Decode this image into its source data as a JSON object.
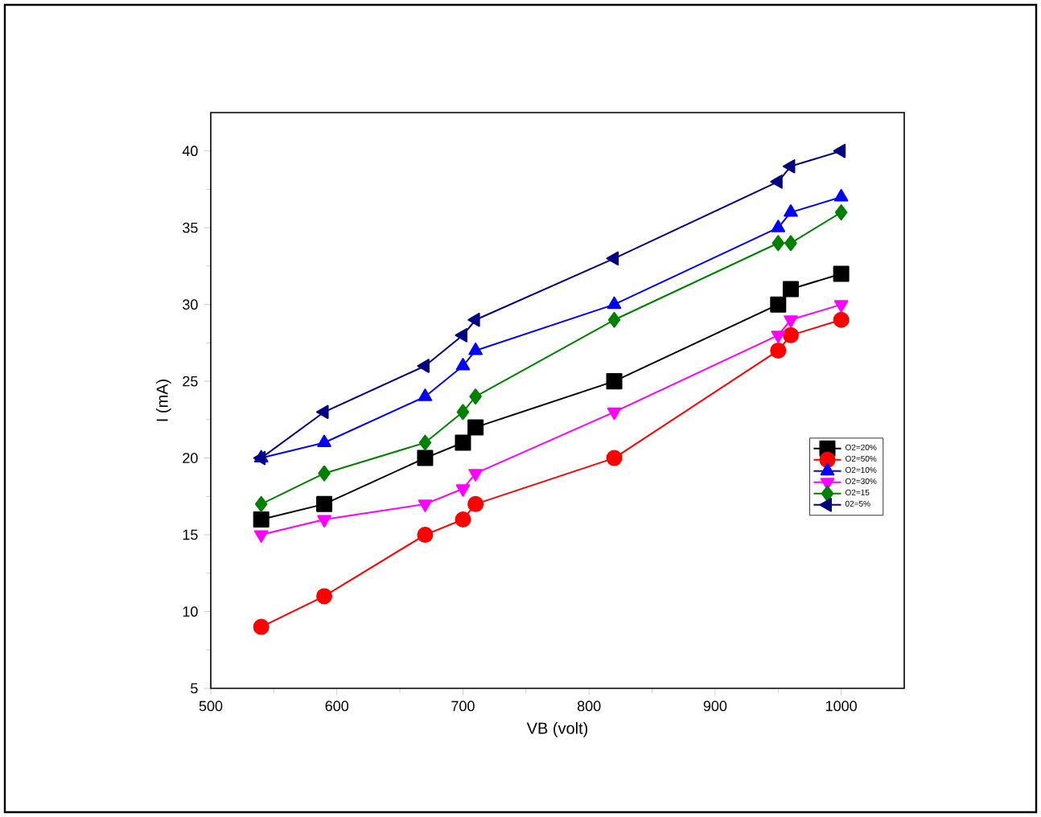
{
  "chart_data": {
    "type": "line",
    "xlabel": "VB (volt)",
    "ylabel": "I (mA)",
    "x": [
      540,
      590,
      670,
      700,
      710,
      820,
      950,
      960,
      1000
    ],
    "series": [
      {
        "name": "O2=20%",
        "color": "#000000",
        "marker": "square",
        "values": [
          16,
          17,
          20,
          21,
          22,
          25,
          30,
          31,
          32
        ]
      },
      {
        "name": "O2=50%",
        "color": "#ff0000",
        "marker": "circle",
        "values": [
          9,
          11,
          15,
          16,
          17,
          20,
          27,
          28,
          29
        ]
      },
      {
        "name": "O2=10%",
        "color": "#0000ff",
        "marker": "triangle",
        "values": [
          20,
          21,
          24,
          26,
          27,
          30,
          35,
          36,
          37
        ]
      },
      {
        "name": "O2=30%",
        "color": "#ff00ff",
        "marker": "triangle-down",
        "values": [
          15,
          16,
          17,
          18,
          19,
          23,
          28,
          29,
          30
        ]
      },
      {
        "name": "O2=15",
        "color": "#008000",
        "marker": "diamond",
        "values": [
          17,
          19,
          21,
          23,
          24,
          29,
          34,
          34,
          36
        ]
      },
      {
        "name": "02=5%",
        "color": "#000080",
        "marker": "triangle-left",
        "values": [
          20,
          23,
          26,
          28,
          29,
          33,
          38,
          39,
          40
        ]
      }
    ],
    "xlim": [
      500,
      1050
    ],
    "ylim": [
      5,
      42.5
    ],
    "xticks": [
      500,
      600,
      700,
      800,
      900,
      1000
    ],
    "yticks": [
      5,
      10,
      15,
      20,
      25,
      30,
      35,
      40
    ],
    "grid": false,
    "legend": "bottom right",
    "line_style": "solid"
  }
}
